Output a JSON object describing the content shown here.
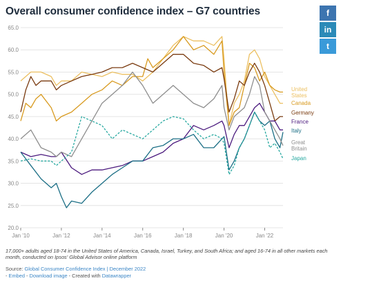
{
  "title": "Overall consumer confidence index – G7 countries",
  "share": {
    "facebook_label": "f",
    "linkedin_label": "in",
    "twitter_label": "t"
  },
  "note": "17,000+ adults aged 18-74 in the United States of America, Canada, Israel, Turkey, and South Africa; and aged 16-74 in all other markets each month, conducted on Ipsos' Global Advisor online platform",
  "source": {
    "prefix": "Source: ",
    "link": "Global Consumer Confidence Index | December 2022"
  },
  "credits": {
    "prefix": "- ",
    "embed": "Embed",
    "sep": " - ",
    "download": "Download image",
    "created": " - Created with ",
    "tool": "Datawrapper"
  },
  "chart_data": {
    "type": "line",
    "ylim": [
      20,
      65
    ],
    "yticks": [
      "20.0",
      "25.0",
      "30.0",
      "35.0",
      "40.0",
      "45.0",
      "50.0",
      "55.0",
      "60.0",
      "65.0"
    ],
    "xlim": [
      2010,
      2022.9
    ],
    "xticks": [
      {
        "value": 2010,
        "label": "Jan '10"
      },
      {
        "value": 2012,
        "label": "Jan '12"
      },
      {
        "value": 2014,
        "label": "Jan '14"
      },
      {
        "value": 2016,
        "label": "Jan '16"
      },
      {
        "value": 2018,
        "label": "Jan '18"
      },
      {
        "value": 2020,
        "label": "Jan '20"
      },
      {
        "value": 2022,
        "label": "Jan '22"
      }
    ],
    "grid": true,
    "series": [
      {
        "name": "United States",
        "color": "#ecc062",
        "dash": false,
        "x": [
          2010,
          2010.5,
          2011,
          2011.5,
          2011.75,
          2012,
          2012.5,
          2013,
          2013.5,
          2014,
          2014.5,
          2015,
          2015.5,
          2016,
          2016.5,
          2017,
          2017.5,
          2018,
          2018.5,
          2019,
          2019.5,
          2019.9,
          2020.0,
          2020.25,
          2020.5,
          2020.75,
          2021,
          2021.25,
          2021.5,
          2021.75,
          2022,
          2022.25,
          2022.5,
          2022.75,
          2022.9
        ],
        "y": [
          53,
          55,
          55,
          54,
          52,
          53,
          53,
          55,
          54.5,
          54,
          55,
          54.5,
          54.5,
          53,
          55,
          58,
          61,
          63,
          62,
          62,
          61,
          63,
          58,
          43,
          48,
          50,
          53,
          59,
          60,
          58,
          54,
          52,
          50,
          48,
          48
        ]
      },
      {
        "name": "Canada",
        "color": "#d89a1f",
        "dash": false,
        "x": [
          2010,
          2010.25,
          2010.5,
          2010.75,
          2011,
          2011.5,
          2011.75,
          2012,
          2012.5,
          2013,
          2013.5,
          2014,
          2014.5,
          2015,
          2015.5,
          2016,
          2016.25,
          2016.5,
          2017,
          2017.5,
          2018,
          2018.5,
          2019,
          2019.5,
          2019.9,
          2020.0,
          2020.25,
          2020.5,
          2020.75,
          2021,
          2021.25,
          2021.5,
          2021.75,
          2022,
          2022.25,
          2022.5,
          2022.75,
          2022.9
        ],
        "y": [
          44,
          48,
          47,
          49,
          50,
          47,
          44,
          45,
          46,
          48,
          50,
          51,
          53,
          52,
          54,
          54,
          58,
          56,
          58,
          60,
          63,
          60,
          61,
          59,
          62,
          55,
          43,
          46,
          47,
          52,
          57,
          56,
          53,
          55,
          52,
          51,
          50.5,
          50.5
        ]
      },
      {
        "name": "Germany",
        "color": "#7a3b10",
        "dash": false,
        "x": [
          2010,
          2010.25,
          2010.5,
          2010.75,
          2011,
          2011.5,
          2011.75,
          2012,
          2012.5,
          2013,
          2013.5,
          2014,
          2014.5,
          2015,
          2015.5,
          2016,
          2016.5,
          2017,
          2017.5,
          2018,
          2018.5,
          2019,
          2019.5,
          2019.9,
          2020.0,
          2020.25,
          2020.5,
          2020.75,
          2021,
          2021.25,
          2021.5,
          2021.75,
          2022,
          2022.25,
          2022.5,
          2022.75,
          2022.9
        ],
        "y": [
          46,
          51,
          54,
          52,
          53,
          53,
          51,
          52,
          53,
          54,
          54.5,
          55,
          56,
          56,
          57,
          56,
          55,
          57,
          59,
          59,
          57,
          56.5,
          55,
          56,
          53.5,
          46,
          49,
          53,
          52,
          55,
          57,
          55,
          52,
          48,
          44,
          45,
          45
        ]
      },
      {
        "name": "France",
        "color": "#4b1a7e",
        "dash": false,
        "x": [
          2010,
          2010.5,
          2011,
          2011.5,
          2011.75,
          2012,
          2012.5,
          2013,
          2013.5,
          2014,
          2014.5,
          2015,
          2015.5,
          2016,
          2016.5,
          2017,
          2017.5,
          2018,
          2018.5,
          2019,
          2019.5,
          2019.9,
          2020.0,
          2020.25,
          2020.5,
          2020.75,
          2021,
          2021.25,
          2021.5,
          2021.75,
          2022,
          2022.25,
          2022.5,
          2022.75,
          2022.9
        ],
        "y": [
          37,
          36,
          36.5,
          36,
          36,
          37,
          33.5,
          32,
          33,
          33,
          33.5,
          34,
          35,
          35,
          36,
          37,
          39,
          40,
          43,
          42,
          43,
          44,
          43,
          38,
          41,
          43,
          43,
          45,
          47,
          48,
          46,
          44,
          44,
          42,
          42
        ]
      },
      {
        "name": "Italy",
        "color": "#1b6e85",
        "dash": false,
        "x": [
          2010,
          2010.5,
          2011,
          2011.5,
          2011.75,
          2012,
          2012.25,
          2012.5,
          2013,
          2013.5,
          2014,
          2014.5,
          2015,
          2015.5,
          2016,
          2016.5,
          2017,
          2017.5,
          2018,
          2018.5,
          2019,
          2019.5,
          2019.9,
          2020.0,
          2020.25,
          2020.5,
          2020.75,
          2021,
          2021.25,
          2021.5,
          2021.75,
          2022,
          2022.25,
          2022.5,
          2022.75,
          2022.9
        ],
        "y": [
          37,
          34,
          31,
          29,
          30,
          27,
          24.5,
          26,
          25.5,
          28,
          30,
          32,
          33.5,
          35,
          35,
          38,
          38.5,
          40,
          40,
          41,
          38,
          38,
          40,
          40.5,
          33,
          35,
          38,
          40,
          43,
          46,
          44,
          43,
          44,
          40,
          38,
          41.5
        ]
      },
      {
        "name": "Great Britain",
        "color": "#8e8e8e",
        "dash": false,
        "x": [
          2010,
          2010.5,
          2011,
          2011.5,
          2011.75,
          2012,
          2012.5,
          2013,
          2013.5,
          2014,
          2014.5,
          2015,
          2015.5,
          2016,
          2016.5,
          2017,
          2017.5,
          2018,
          2018.5,
          2019,
          2019.5,
          2019.9,
          2020.0,
          2020.25,
          2020.5,
          2020.75,
          2021,
          2021.25,
          2021.5,
          2021.75,
          2022,
          2022.25,
          2022.5,
          2022.75,
          2022.9
        ],
        "y": [
          40,
          42,
          38,
          37,
          36,
          37,
          36,
          40,
          44,
          48,
          50,
          52,
          55,
          52,
          48,
          50,
          52,
          50,
          48,
          47,
          49,
          52,
          47,
          42,
          45,
          46,
          47,
          50,
          54,
          52,
          46,
          44,
          42,
          40,
          38.5
        ]
      },
      {
        "name": "Japan",
        "color": "#27a8a0",
        "dash": true,
        "x": [
          2010,
          2010.5,
          2011,
          2011.5,
          2011.75,
          2012,
          2012.5,
          2013,
          2013.5,
          2014,
          2014.5,
          2015,
          2015.5,
          2016,
          2016.5,
          2017,
          2017.5,
          2018,
          2018.5,
          2019,
          2019.5,
          2019.9,
          2020.0,
          2020.25,
          2020.5,
          2020.75,
          2021,
          2021.25,
          2021.5,
          2021.75,
          2022,
          2022.25,
          2022.5,
          2022.75,
          2022.9
        ],
        "y": [
          35,
          35.5,
          35,
          35,
          34,
          35,
          37,
          45,
          44,
          43,
          40,
          42,
          41,
          40,
          42,
          44,
          45,
          44.5,
          42,
          40,
          41,
          40,
          39,
          32,
          34,
          38,
          40,
          43,
          46,
          44,
          42,
          38,
          39,
          37,
          35.5
        ]
      }
    ],
    "labels": [
      {
        "lines": [
          "United",
          "States"
        ],
        "series": "United States"
      },
      {
        "lines": [
          "Canada"
        ],
        "series": "Canada"
      },
      {
        "lines": [
          "Germany"
        ],
        "series": "Germany"
      },
      {
        "lines": [
          "France"
        ],
        "series": "France"
      },
      {
        "lines": [
          "Italy"
        ],
        "series": "Italy"
      },
      {
        "lines": [
          "Great",
          "Britain"
        ],
        "series": "Great Britain"
      },
      {
        "lines": [
          "Japan"
        ],
        "series": "Japan"
      }
    ]
  }
}
